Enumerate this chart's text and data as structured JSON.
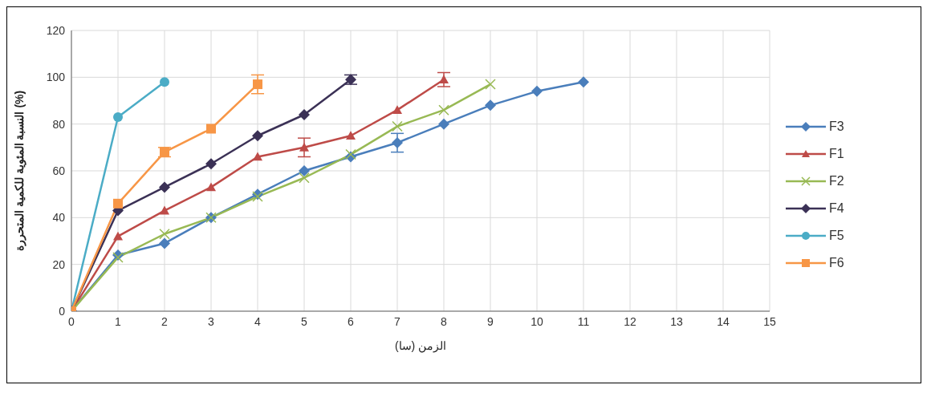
{
  "chart_data": {
    "type": "line",
    "xlabel": "الزمن (سا)",
    "ylabel": "النسبة المئوية للكمية المتحررة (%)",
    "xlim": [
      0,
      15
    ],
    "xticks": [
      0,
      1,
      2,
      3,
      4,
      5,
      6,
      7,
      8,
      9,
      10,
      11,
      12,
      13,
      14,
      15
    ],
    "ylim": [
      0,
      120
    ],
    "yticks": [
      0,
      20,
      40,
      60,
      80,
      100,
      120
    ],
    "grid": true,
    "legend": "right",
    "line_style": "solid",
    "series": [
      {
        "name": "F3",
        "color": "#4a7ebb",
        "marker": "diamond",
        "x": [
          0,
          1,
          2,
          3,
          4,
          5,
          6,
          7,
          8,
          9,
          10,
          11
        ],
        "values": [
          0,
          24,
          29,
          40,
          50,
          60,
          66,
          72,
          80,
          88,
          94,
          98
        ],
        "errors": [
          null,
          null,
          null,
          null,
          null,
          null,
          null,
          4,
          null,
          null,
          null,
          null
        ]
      },
      {
        "name": "F1",
        "color": "#be4b48",
        "marker": "triangle",
        "x": [
          0,
          1,
          2,
          3,
          4,
          5,
          6,
          7,
          8
        ],
        "values": [
          0,
          32,
          43,
          53,
          66,
          70,
          75,
          86,
          99
        ],
        "errors": [
          null,
          null,
          null,
          null,
          null,
          4,
          null,
          null,
          3
        ]
      },
      {
        "name": "F2",
        "color": "#98b954",
        "marker": "cross",
        "x": [
          0,
          1,
          2,
          3,
          4,
          5,
          6,
          7,
          8,
          9
        ],
        "values": [
          0,
          23,
          33,
          40,
          49,
          57,
          67,
          79,
          86,
          97
        ],
        "errors": [
          null,
          null,
          null,
          null,
          null,
          null,
          null,
          null,
          null,
          null
        ]
      },
      {
        "name": "F4",
        "color": "#3b3156",
        "marker": "diamond",
        "x": [
          0,
          1,
          2,
          3,
          4,
          5,
          6
        ],
        "values": [
          0,
          43,
          53,
          63,
          75,
          84,
          99
        ],
        "errors": [
          null,
          null,
          null,
          null,
          null,
          null,
          2
        ]
      },
      {
        "name": "F5",
        "color": "#4bacc6",
        "marker": "circle",
        "x": [
          0,
          1,
          2
        ],
        "values": [
          0,
          83,
          98
        ],
        "errors": [
          null,
          null,
          null
        ]
      },
      {
        "name": "F6",
        "color": "#f79646",
        "marker": "square",
        "x": [
          0,
          1,
          2,
          3,
          4
        ],
        "values": [
          0,
          46,
          68,
          78,
          97
        ],
        "errors": [
          null,
          null,
          2,
          null,
          4
        ]
      }
    ]
  }
}
